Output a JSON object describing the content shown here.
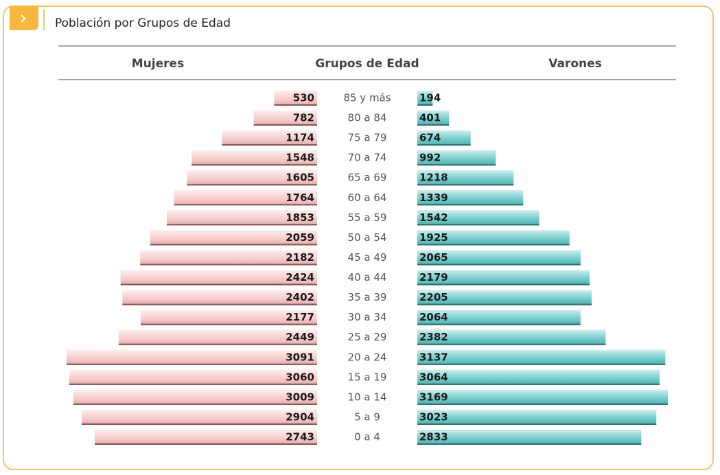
{
  "chart_data": {
    "type": "pyramid",
    "title": "Población por Grupos de Edad",
    "category_label": "Grupos de Edad",
    "categories": [
      "85 y más",
      "80 a 84",
      "75 a 79",
      "70 a 74",
      "65 a 69",
      "60 a 64",
      "55 a 59",
      "50 a 54",
      "45 a 49",
      "40 a 44",
      "35 a 39",
      "30 a 34",
      "25 a 29",
      "20 a 24",
      "15 a 19",
      "10 a 14",
      "5 a 9",
      "0 a 4"
    ],
    "series": [
      {
        "name": "Mujeres",
        "color": "#f7c4c4",
        "values": [
          530,
          782,
          1174,
          1548,
          1605,
          1764,
          1853,
          2059,
          2182,
          2424,
          2402,
          2177,
          2449,
          3091,
          3060,
          3009,
          2904,
          2743
        ]
      },
      {
        "name": "Varones",
        "color": "#5fc4c4",
        "values": [
          194,
          401,
          674,
          992,
          1218,
          1339,
          1542,
          1925,
          2065,
          2179,
          2205,
          2064,
          2382,
          3137,
          3064,
          3169,
          3023,
          2833
        ]
      }
    ]
  }
}
